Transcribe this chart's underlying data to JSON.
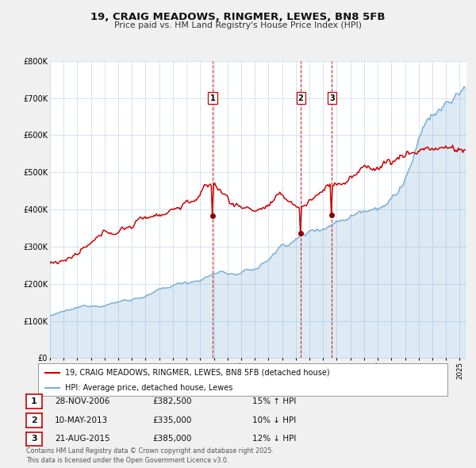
{
  "title": "19, CRAIG MEADOWS, RINGMER, LEWES, BN8 5FB",
  "subtitle": "Price paid vs. HM Land Registry's House Price Index (HPI)",
  "red_label": "19, CRAIG MEADOWS, RINGMER, LEWES, BN8 5FB (detached house)",
  "blue_label": "HPI: Average price, detached house, Lewes",
  "red_color": "#cc0000",
  "blue_color": "#7aaed6",
  "blue_fill": "#d6e8f5",
  "sale_color": "#880000",
  "vline_color": "#cc0000",
  "background_color": "#f0f0f0",
  "plot_bg": "#ffffff",
  "grid_color": "#ccddee",
  "ylim": [
    0,
    800000
  ],
  "yticks": [
    0,
    100000,
    200000,
    300000,
    400000,
    500000,
    600000,
    700000,
    800000
  ],
  "ytick_labels": [
    "£0",
    "£100K",
    "£200K",
    "£300K",
    "£400K",
    "£500K",
    "£600K",
    "£700K",
    "£800K"
  ],
  "sales": [
    {
      "num": 1,
      "year": 2006.91,
      "price": 382500,
      "date": "28-NOV-2006",
      "pct": "15%",
      "dir": "↑"
    },
    {
      "num": 2,
      "year": 2013.36,
      "price": 335000,
      "date": "10-MAY-2013",
      "pct": "10%",
      "dir": "↓"
    },
    {
      "num": 3,
      "year": 2015.64,
      "price": 385000,
      "date": "21-AUG-2015",
      "pct": "12%",
      "dir": "↓"
    }
  ],
  "footnote": "Contains HM Land Registry data © Crown copyright and database right 2025.\nThis data is licensed under the Open Government Licence v3.0.",
  "xmin": 1995.0,
  "xmax": 2025.5
}
